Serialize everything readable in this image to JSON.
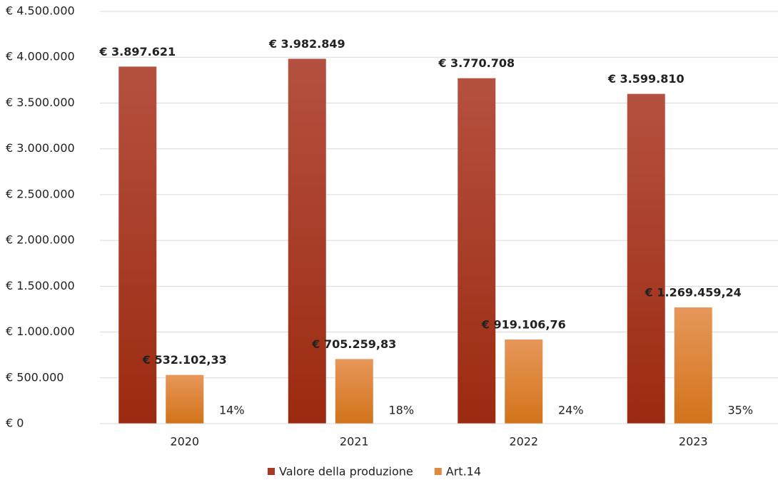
{
  "chart_data": {
    "type": "bar",
    "categories": [
      "2020",
      "2021",
      "2022",
      "2023"
    ],
    "series": [
      {
        "name": "Valore della produzione",
        "color": "#a63a22",
        "gradient": [
          "#b55140",
          "#9c2a10"
        ],
        "values": [
          3897621,
          3982849,
          3770708,
          3599810
        ],
        "value_labels": [
          "€ 3.897.621",
          "€ 3.982.849",
          "€ 3.770.708",
          "€ 3.599.810"
        ]
      },
      {
        "name": "Art.14",
        "color": "#de8a3c",
        "gradient": [
          "#e7975a",
          "#d2731a"
        ],
        "values": [
          532102.33,
          705259.83,
          919106.76,
          1269459.24
        ],
        "value_labels": [
          "€ 532.102,33",
          "€ 705.259,83",
          "€ 919.106,76",
          "€ 1.269.459,24"
        ]
      }
    ],
    "annotations": [
      "14%",
      "18%",
      "24%",
      "35%"
    ],
    "ylim": [
      0,
      4500000
    ],
    "yticks": [
      {
        "value": 0,
        "label": "€ 0"
      },
      {
        "value": 500000,
        "label": "€ 500.000"
      },
      {
        "value": 1000000,
        "label": "€ 1.000.000"
      },
      {
        "value": 1500000,
        "label": "€ 1.500.000"
      },
      {
        "value": 2000000,
        "label": "€ 2.000.000"
      },
      {
        "value": 2500000,
        "label": "€ 2.500.000"
      },
      {
        "value": 3000000,
        "label": "€ 3.000.000"
      },
      {
        "value": 3500000,
        "label": "€ 3.500.000"
      },
      {
        "value": 4000000,
        "label": "€ 4.000.000"
      },
      {
        "value": 4500000,
        "label": "€ 4.500.000"
      }
    ],
    "grid": true,
    "legend": "bottom"
  }
}
